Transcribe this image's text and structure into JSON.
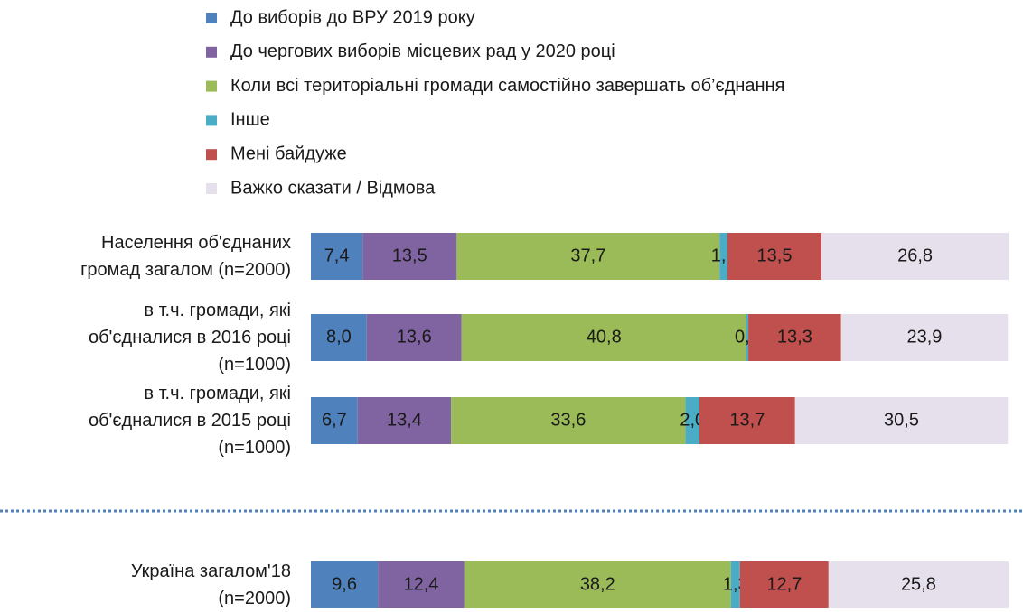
{
  "chart_data": {
    "type": "stacked-barh",
    "categories": [
      "Населення об'єднаних\nгромад загалом (n=2000)",
      "в т.ч. громади, які\nоб'єдналися в 2016 році\n(n=1000)",
      "в т.ч. громади, які\nоб'єдналися в 2015 році\n(n=1000)",
      "Україна загалом'18\n(n=2000)"
    ],
    "xlim": [
      0,
      100
    ],
    "series": [
      {
        "name": "До виборів до ВРУ 2019 року",
        "color": "#4f81bd",
        "values": [
          7.4,
          8.0,
          6.7,
          9.6
        ],
        "value_labels": [
          "7,4",
          "8,0",
          "6,7",
          "9,6"
        ]
      },
      {
        "name": "До чергових виборів місцевих рад у 2020 році",
        "color": "#8064a2",
        "values": [
          13.5,
          13.6,
          13.4,
          12.4
        ],
        "value_labels": [
          "13,5",
          "13,6",
          "13,4",
          "12,4"
        ]
      },
      {
        "name": "Коли всі територіальні громади самостійно завершать об’єднання",
        "color": "#9bbb59",
        "values": [
          37.7,
          40.8,
          33.6,
          38.2
        ],
        "value_labels": [
          "37,7",
          "40,8",
          "33,6",
          "38,2"
        ]
      },
      {
        "name": "Інше",
        "color": "#4bacc6",
        "values": [
          1.1,
          0.3,
          2.0,
          1.3
        ],
        "value_labels": [
          "1,1",
          "0,3",
          "2,0",
          "1,3"
        ]
      },
      {
        "name": "Мені байдуже",
        "color": "#c0504d",
        "values": [
          13.5,
          13.3,
          13.7,
          12.7
        ],
        "value_labels": [
          "13,5",
          "13,3",
          "13,7",
          "12,7"
        ]
      },
      {
        "name": "Важко сказати / Відмова",
        "color": "#e6e0ec",
        "values": [
          26.8,
          23.9,
          30.5,
          25.8
        ],
        "value_labels": [
          "26,8",
          "23,9",
          "30,5",
          "25,8"
        ]
      }
    ]
  }
}
